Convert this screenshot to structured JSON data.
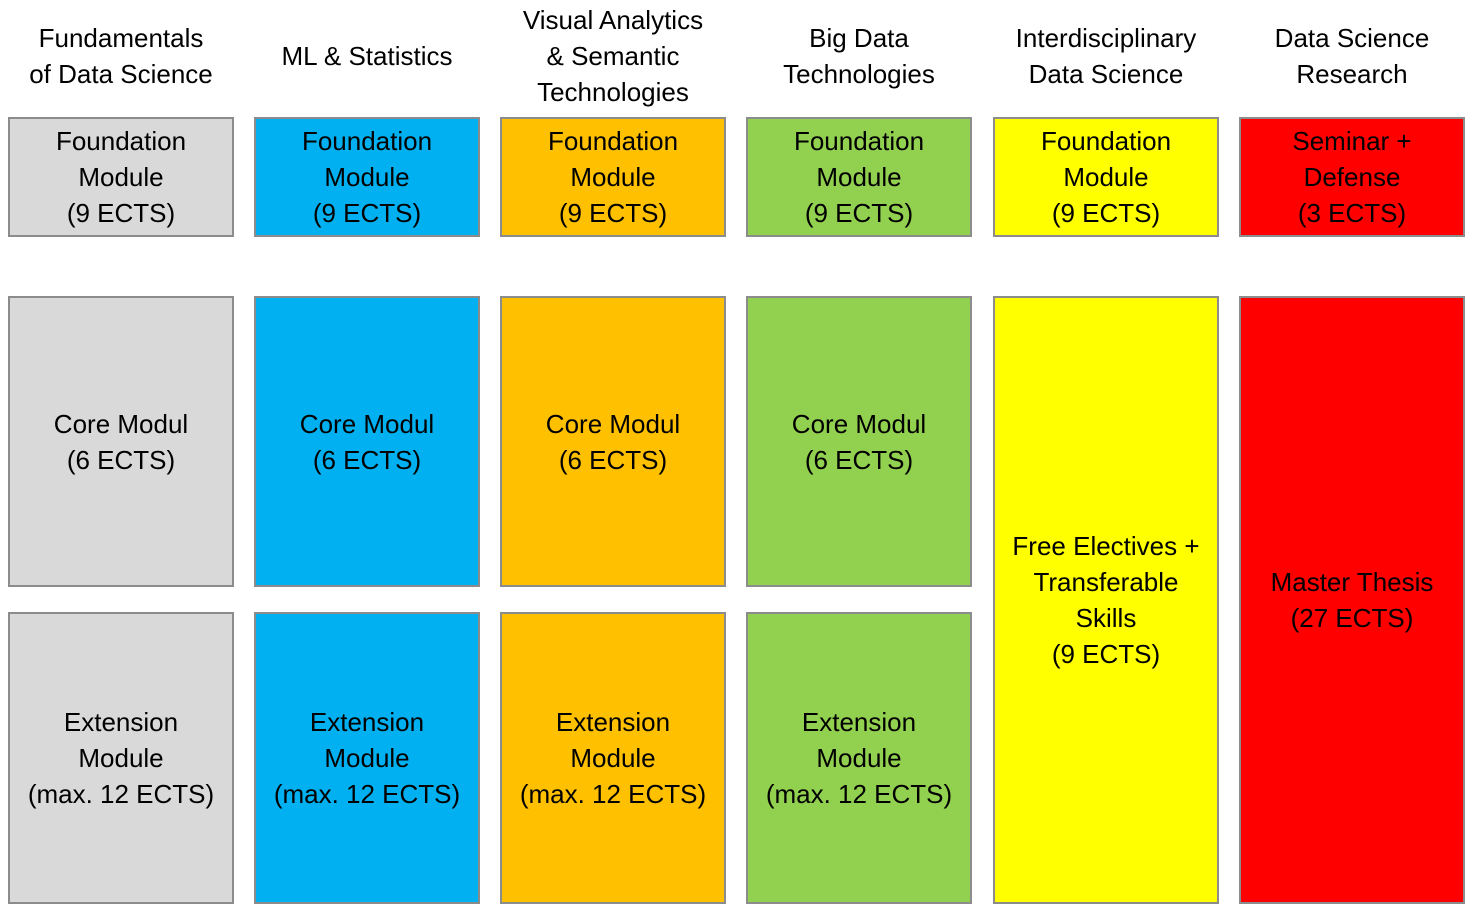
{
  "columns": [
    {
      "header": "Fundamentals\nof Data Science",
      "color": "#D9D9D9",
      "foundation": "Foundation\nModule\n(9 ECTS)",
      "core": "Core Modul\n(6 ECTS)",
      "extension": "Extension\nModule\n(max. 12 ECTS)"
    },
    {
      "header": "ML & Statistics",
      "color": "#00B0F0",
      "foundation": "Foundation\nModule\n(9 ECTS)",
      "core": "Core Modul\n(6 ECTS)",
      "extension": "Extension\nModule\n(max. 12 ECTS)"
    },
    {
      "header": "Visual Analytics\n& Semantic\nTechnologies",
      "color": "#FFC000",
      "foundation": "Foundation\nModule\n(9 ECTS)",
      "core": "Core Modul\n(6 ECTS)",
      "extension": "Extension\nModule\n(max. 12 ECTS)"
    },
    {
      "header": "Big Data\nTechnologies",
      "color": "#92D050",
      "foundation": "Foundation\nModule\n(9 ECTS)",
      "core": "Core Modul\n(6 ECTS)",
      "extension": "Extension\nModule\n(max. 12 ECTS)"
    },
    {
      "header": "Interdisciplinary\nData Science",
      "color": "#FFFF00",
      "foundation": "Foundation\nModule\n(9 ECTS)",
      "electives": "Free Electives +\nTransferable\nSkills\n(9 ECTS)"
    },
    {
      "header": "Data Science\nResearch",
      "color": "#FF0000",
      "seminar": "Seminar +\nDefense\n(3 ECTS)",
      "thesis": "Master Thesis\n(27 ECTS)"
    }
  ]
}
